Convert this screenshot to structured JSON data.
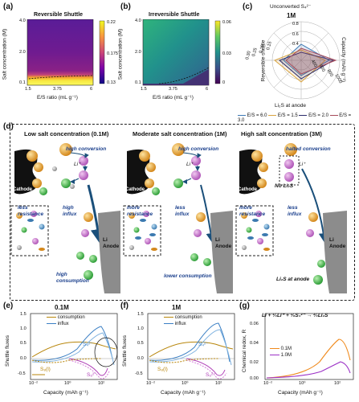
{
  "panels": {
    "a": {
      "label": "(a)",
      "title": "Reversible Shuttle",
      "ylabel": "Salt concentration (M)",
      "xlabel": "E/S ratio (mL g⁻¹)",
      "yticks": [
        "4.0",
        "2.0",
        "0.1"
      ],
      "xticks": [
        "1.5",
        "3.75",
        "6"
      ],
      "colorbar": [
        "0.22",
        "0.175",
        "0.13"
      ]
    },
    "b": {
      "label": "(b)",
      "title": "Irreversible Shuttle",
      "ylabel": "Salt concentration (M)",
      "xlabel": "E/S ratio (mL g⁻¹)",
      "yticks": [
        "4.0",
        "2.0",
        "0.1"
      ],
      "xticks": [
        "1.5",
        "3.75",
        "6"
      ],
      "colorbar": [
        "0.06",
        "0.03",
        "0"
      ]
    },
    "c": {
      "label": "(c)",
      "title": "1M",
      "axis_top": "Unconverted S₄²⁻",
      "axis_right": "Capacity (mAh g⁻¹)",
      "axis_bottom": "Li₂S at anode",
      "axis_left": "Reversible shuttle",
      "ticks_top": [
        "0.8",
        "0.6",
        "0.4"
      ],
      "ticks_right": [
        "400",
        "600",
        "800",
        "1000"
      ],
      "ticks_left": [
        "0.15",
        "0.20",
        "0.25",
        "0.30"
      ],
      "legend": [
        "E/S = 6.0",
        "E/S = 1.5",
        "E/S = 2.0",
        "E/S = 3.0"
      ],
      "legend_colors": [
        "#3c78b4",
        "#d9a441",
        "#2c2c6a",
        "#a64a5a"
      ]
    },
    "d": {
      "label": "(d)",
      "columns": [
        {
          "title": "Low salt concentration (0.1M)",
          "top": "high conversion",
          "mid_left": "less resistance",
          "mid_right": "high influx",
          "bottom": "high consumption"
        },
        {
          "title": "Moderate salt concentration (1M)",
          "top": "high conversion",
          "mid_left": "more resistance",
          "mid_right": "less influx",
          "bottom": "lower consumption"
        },
        {
          "title": "High salt concentration (3M)",
          "top": "halted conversion",
          "mid_left": "more resistance",
          "mid_right": "less influx",
          "bottom": "Li₂S at anode"
        }
      ],
      "cathode": "Cathode",
      "anode": "Li Anode",
      "li_ion": "Li⁺",
      "no_li2s": "No Li₂S"
    },
    "e": {
      "label": "(e)",
      "title": "0.1M",
      "ylabel": "Shuttle fluxes",
      "xlabel": "Capacity (mAh g⁻¹)",
      "legend": [
        "consumption",
        "influx"
      ],
      "yticks": [
        "1.5",
        "1.0",
        "0.5",
        "0.0",
        "-0.5"
      ],
      "xticks": [
        "10⁻²",
        "10⁰",
        "10²"
      ],
      "s4": "S₄²⁻",
      "s8l": "S₈(l)",
      "s6": "S₆²⁻"
    },
    "f": {
      "label": "(f)",
      "title": "1M",
      "ylabel": "Shuttle fluxes",
      "xlabel": "Capacity (mAh g⁻¹)",
      "legend": [
        "consumption",
        "influx"
      ],
      "yticks": [
        "1.5",
        "1.0",
        "0.5",
        "0.0",
        "-0.5"
      ],
      "xticks": [
        "10⁻²",
        "10⁰",
        "10²"
      ],
      "s4": "S₄²⁻",
      "s8l": "S₈(l)",
      "s6": "S₆²⁻"
    },
    "g": {
      "label": "(g)",
      "equation": "Li + ¹⁄₃Li⁺ + ¹⁄₆S₄²⁻ → ²⁄₃Li₂S",
      "ylabel": "Chemical redox, R",
      "xlabel": "Capacity (mAh g⁻¹)",
      "legend": [
        "0.1M",
        "1.0M"
      ],
      "yticks": [
        "0.00",
        "0.02",
        "0.04",
        "0.06"
      ],
      "xticks": [
        "10⁻²",
        "10⁰",
        "10²"
      ]
    }
  },
  "colors": {
    "consumption": "#b8860b",
    "influx": "#3a7fc4",
    "purple": "#b040b8",
    "violet": "#7a1fa2",
    "orange": "#f08a1c",
    "teal": "#1c8c8c"
  }
}
